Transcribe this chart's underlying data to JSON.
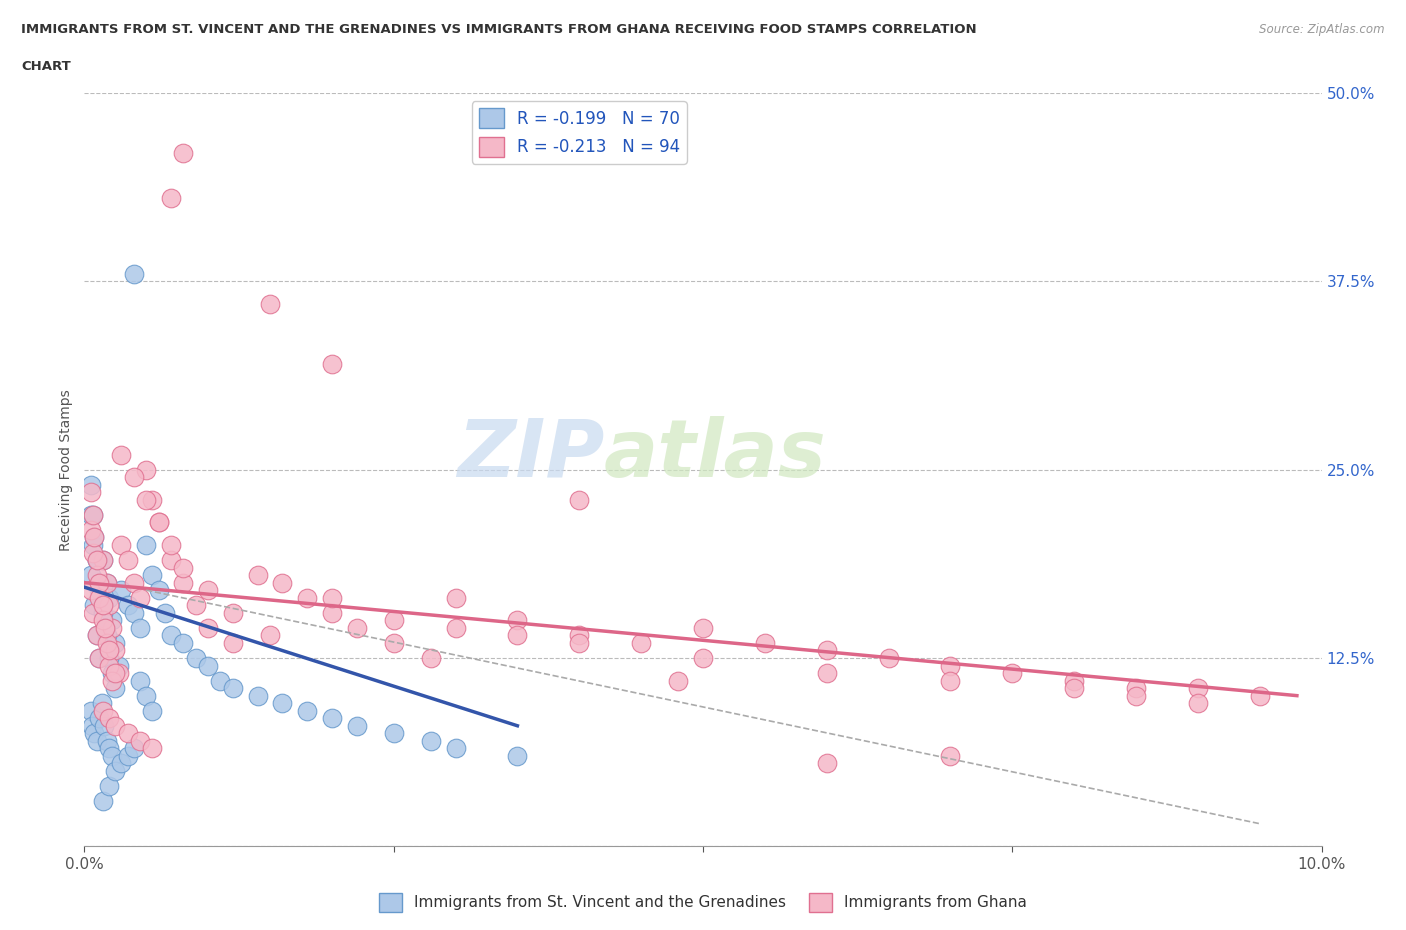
{
  "title_line1": "IMMIGRANTS FROM ST. VINCENT AND THE GRENADINES VS IMMIGRANTS FROM GHANA RECEIVING FOOD STAMPS CORRELATION",
  "title_line2": "CHART",
  "source_text": "Source: ZipAtlas.com",
  "ylabel": "Receiving Food Stamps",
  "xlim": [
    0.0,
    10.0
  ],
  "ylim": [
    0.0,
    50.0
  ],
  "ytick_positions": [
    0.0,
    12.5,
    25.0,
    37.5,
    50.0
  ],
  "ytick_labels": [
    "",
    "12.5%",
    "25.0%",
    "37.5%",
    "50.0%"
  ],
  "watermark_zip": "ZIP",
  "watermark_atlas": "atlas",
  "legend_entry1": "R = -0.199   N = 70",
  "legend_entry2": "R = -0.213   N = 94",
  "blue_color": "#adc8e8",
  "pink_color": "#f5b8c8",
  "blue_edge": "#6699cc",
  "pink_edge": "#e07090",
  "blue_line_color": "#3355aa",
  "pink_line_color": "#dd6688",
  "blue_scatter_x": [
    0.05,
    0.08,
    0.1,
    0.12,
    0.15,
    0.18,
    0.2,
    0.22,
    0.25,
    0.28,
    0.05,
    0.07,
    0.1,
    0.12,
    0.15,
    0.18,
    0.2,
    0.22,
    0.25,
    0.05,
    0.07,
    0.08,
    0.1,
    0.12,
    0.15,
    0.17,
    0.2,
    0.05,
    0.06,
    0.08,
    0.1,
    0.12,
    0.14,
    0.16,
    0.18,
    0.2,
    0.22,
    0.3,
    0.35,
    0.4,
    0.45,
    0.5,
    0.55,
    0.6,
    0.65,
    0.7,
    0.8,
    0.9,
    1.0,
    1.1,
    1.2,
    1.4,
    1.6,
    1.8,
    2.0,
    2.2,
    2.5,
    2.8,
    3.0,
    3.5,
    0.4,
    0.45,
    0.5,
    0.55,
    0.15,
    0.2,
    0.25,
    0.3,
    0.35,
    0.4
  ],
  "blue_scatter_y": [
    18.0,
    16.0,
    14.0,
    12.5,
    19.0,
    17.5,
    16.5,
    15.0,
    13.5,
    12.0,
    22.0,
    20.0,
    19.0,
    17.0,
    15.5,
    14.0,
    12.5,
    11.5,
    10.5,
    24.0,
    22.0,
    20.5,
    19.0,
    17.5,
    16.0,
    14.5,
    13.0,
    9.0,
    8.0,
    7.5,
    7.0,
    8.5,
    9.5,
    8.0,
    7.0,
    6.5,
    6.0,
    17.0,
    16.0,
    15.5,
    14.5,
    20.0,
    18.0,
    17.0,
    15.5,
    14.0,
    13.5,
    12.5,
    12.0,
    11.0,
    10.5,
    10.0,
    9.5,
    9.0,
    8.5,
    8.0,
    7.5,
    7.0,
    6.5,
    6.0,
    38.0,
    11.0,
    10.0,
    9.0,
    3.0,
    4.0,
    5.0,
    5.5,
    6.0,
    6.5
  ],
  "pink_scatter_x": [
    0.05,
    0.07,
    0.1,
    0.12,
    0.15,
    0.18,
    0.2,
    0.22,
    0.25,
    0.28,
    0.05,
    0.07,
    0.1,
    0.12,
    0.15,
    0.18,
    0.2,
    0.22,
    0.05,
    0.07,
    0.08,
    0.1,
    0.12,
    0.15,
    0.17,
    0.2,
    0.25,
    0.3,
    0.35,
    0.4,
    0.45,
    0.5,
    0.55,
    0.6,
    0.7,
    0.8,
    0.9,
    1.0,
    1.2,
    1.4,
    1.6,
    1.8,
    2.0,
    2.2,
    2.5,
    2.8,
    3.0,
    3.5,
    4.0,
    4.5,
    5.0,
    5.5,
    6.0,
    6.5,
    7.0,
    7.5,
    8.0,
    8.5,
    9.0,
    9.5,
    0.3,
    0.4,
    0.5,
    0.6,
    0.7,
    0.8,
    1.0,
    1.2,
    1.5,
    2.0,
    2.5,
    3.0,
    3.5,
    4.0,
    5.0,
    6.0,
    7.0,
    8.0,
    0.15,
    0.2,
    0.25,
    0.35,
    0.45,
    0.55,
    1.5,
    2.0,
    0.7,
    0.8,
    4.8,
    8.5,
    9.0,
    4.0,
    6.0,
    7.0
  ],
  "pink_scatter_y": [
    17.0,
    15.5,
    14.0,
    12.5,
    19.0,
    17.5,
    16.0,
    14.5,
    13.0,
    11.5,
    21.0,
    19.5,
    18.0,
    16.5,
    15.0,
    13.5,
    12.0,
    11.0,
    23.5,
    22.0,
    20.5,
    19.0,
    17.5,
    16.0,
    14.5,
    13.0,
    11.5,
    20.0,
    19.0,
    17.5,
    16.5,
    25.0,
    23.0,
    21.5,
    19.0,
    17.5,
    16.0,
    14.5,
    13.5,
    18.0,
    17.5,
    16.5,
    15.5,
    14.5,
    13.5,
    12.5,
    16.5,
    15.0,
    14.0,
    13.5,
    14.5,
    13.5,
    13.0,
    12.5,
    12.0,
    11.5,
    11.0,
    10.5,
    10.5,
    10.0,
    26.0,
    24.5,
    23.0,
    21.5,
    20.0,
    18.5,
    17.0,
    15.5,
    14.0,
    16.5,
    15.0,
    14.5,
    14.0,
    13.5,
    12.5,
    11.5,
    11.0,
    10.5,
    9.0,
    8.5,
    8.0,
    7.5,
    7.0,
    6.5,
    36.0,
    32.0,
    43.0,
    46.0,
    11.0,
    10.0,
    9.5,
    23.0,
    5.5,
    6.0
  ],
  "blue_trend_x": [
    0.0,
    3.5
  ],
  "blue_trend_y": [
    17.2,
    8.0
  ],
  "pink_trend_x": [
    0.0,
    9.8
  ],
  "pink_trend_y": [
    17.5,
    10.0
  ],
  "dashed_trend_x": [
    0.5,
    9.5
  ],
  "dashed_trend_y": [
    17.0,
    1.5
  ]
}
